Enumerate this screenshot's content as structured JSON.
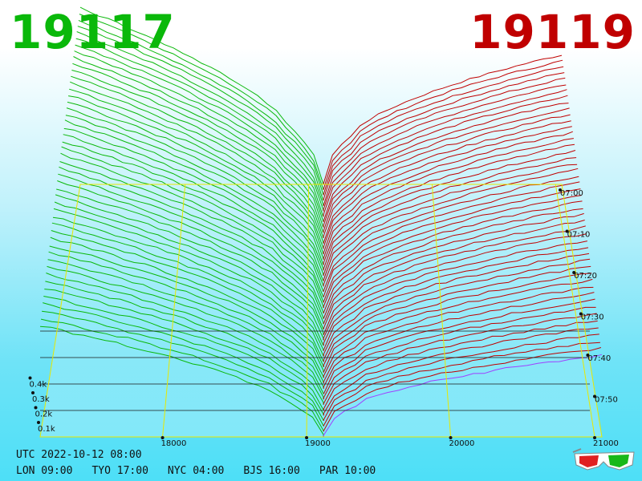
{
  "header": {
    "bid_price": "19117",
    "ask_price": "19119"
  },
  "clock": {
    "utc": "UTC 2022-10-12 08:00",
    "zones": [
      "LON 09:00",
      "TYO 17:00",
      "NYC 04:00",
      "BJS 16:00",
      "PAR 10:00"
    ]
  },
  "colors": {
    "bid": "#0ab80a",
    "ask": "#c00000",
    "grid": "#e8e800",
    "background": "#5fe0f6",
    "floor_line": "#1a1a1a",
    "highlight": "#a040ff"
  },
  "icons": {
    "glasses": "3d-glasses-icon"
  },
  "chart_data": {
    "type": "area",
    "x_ticks": [
      "18000",
      "19000",
      "20000",
      "21000"
    ],
    "x_tick_values": [
      18000,
      19000,
      20000,
      21000
    ],
    "xlim": [
      17150,
      21050
    ],
    "volume_ticks": [
      "0.1k",
      "0.2k",
      "0.3k",
      "0.4k"
    ],
    "volume_values": [
      100,
      200,
      300,
      400
    ],
    "ylim": [
      0,
      1000
    ],
    "time_ticks": [
      "07:00",
      "07:10",
      "07:20",
      "07:30",
      "07:40",
      "07:50"
    ],
    "time_minutes": [
      0,
      10,
      20,
      30,
      40,
      50
    ],
    "time_range": [
      0,
      58
    ],
    "snapshot_count": 48,
    "bid_price": 19117,
    "ask_price": 19119,
    "bid_depth_far_end": 900,
    "ask_depth_far_end": 650,
    "grid": true
  }
}
